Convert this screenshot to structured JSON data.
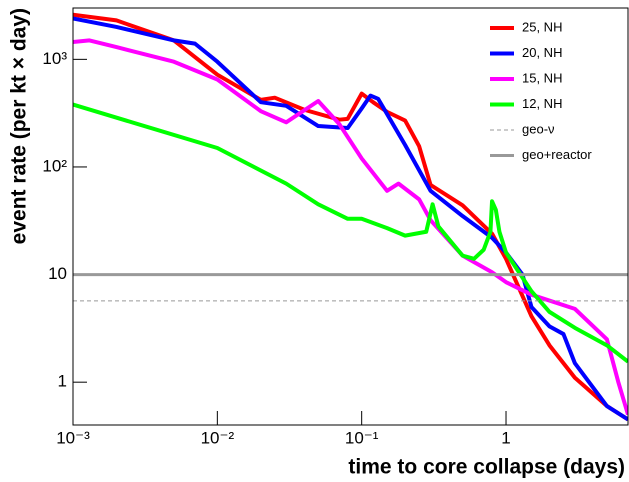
{
  "chart_data": {
    "type": "line",
    "xlabel": "time to core collapse (days)",
    "ylabel": "event rate (per kt × day)",
    "xscale": "log",
    "yscale": "log",
    "xlim": [
      0.001,
      7
    ],
    "ylim": [
      0.4,
      3000
    ],
    "xticks": [
      {
        "value": 0.001,
        "label": "10⁻³"
      },
      {
        "value": 0.01,
        "label": "10⁻²"
      },
      {
        "value": 0.1,
        "label": "10⁻¹"
      },
      1
    ],
    "yticks": [
      1,
      10,
      {
        "value": 100,
        "label": "10²"
      },
      {
        "value": 1000,
        "label": "10³"
      }
    ],
    "legend": "upper right",
    "series": [
      {
        "name": "25, NH",
        "color": "#ff0000",
        "width": 4,
        "dashed": false,
        "x": [
          0.001,
          0.002,
          0.005,
          0.01,
          0.02,
          0.025,
          0.04,
          0.07,
          0.08,
          0.1,
          0.12,
          0.15,
          0.2,
          0.25,
          0.3,
          0.5,
          0.8,
          1,
          1.5,
          2,
          3,
          5,
          7
        ],
        "values": [
          2600,
          2300,
          1500,
          720,
          420,
          440,
          340,
          275,
          280,
          480,
          400,
          325,
          270,
          156,
          68,
          44,
          24,
          14,
          4.1,
          2.2,
          1.1,
          0.6,
          0.45
        ]
      },
      {
        "name": "20, NH",
        "color": "#0000ff",
        "width": 4,
        "dashed": false,
        "x": [
          0.001,
          0.002,
          0.005,
          0.007,
          0.01,
          0.02,
          0.03,
          0.05,
          0.08,
          0.1,
          0.115,
          0.13,
          0.2,
          0.3,
          0.5,
          0.8,
          1,
          1.3,
          1.5,
          2,
          2.5,
          3,
          5,
          7
        ],
        "values": [
          2400,
          2000,
          1500,
          1400,
          950,
          400,
          370,
          240,
          230,
          350,
          460,
          430,
          160,
          60,
          35,
          22,
          16,
          10,
          5,
          3.3,
          2.8,
          1.5,
          0.6,
          0.45
        ]
      },
      {
        "name": "15, NH",
        "color": "#ff00ff",
        "width": 4,
        "dashed": false,
        "x": [
          0.001,
          0.0013,
          0.002,
          0.005,
          0.01,
          0.02,
          0.03,
          0.05,
          0.07,
          0.1,
          0.15,
          0.18,
          0.25,
          0.3,
          0.5,
          0.8,
          1,
          1.5,
          3,
          5,
          6,
          7
        ],
        "values": [
          1450,
          1500,
          1300,
          950,
          650,
          330,
          260,
          410,
          250,
          120,
          60,
          70,
          50,
          32,
          15,
          10.5,
          8.5,
          6.5,
          4.8,
          2.5,
          1,
          0.5
        ]
      },
      {
        "name": "12, NH",
        "color": "#00ff00",
        "width": 4,
        "dashed": false,
        "x": [
          0.001,
          0.01,
          0.03,
          0.05,
          0.08,
          0.1,
          0.15,
          0.2,
          0.28,
          0.31,
          0.34,
          0.5,
          0.6,
          0.7,
          0.78,
          0.8,
          0.85,
          0.9,
          1,
          1.5,
          2,
          3,
          5,
          7
        ],
        "values": [
          380,
          150,
          70,
          45,
          33,
          33,
          27,
          23,
          25,
          45,
          28,
          15,
          14,
          17,
          25,
          48,
          40,
          25,
          16,
          7,
          4.5,
          3.2,
          2.2,
          1.55
        ]
      },
      {
        "name": "geo-ν",
        "color": "#999999",
        "width": 1,
        "dashed": true,
        "x": [
          0.001,
          7
        ],
        "values": [
          5.7,
          5.7
        ]
      },
      {
        "name": "geo+reactor",
        "color": "#999999",
        "width": 3,
        "dashed": false,
        "x": [
          0.001,
          7
        ],
        "values": [
          10,
          10
        ]
      }
    ]
  }
}
